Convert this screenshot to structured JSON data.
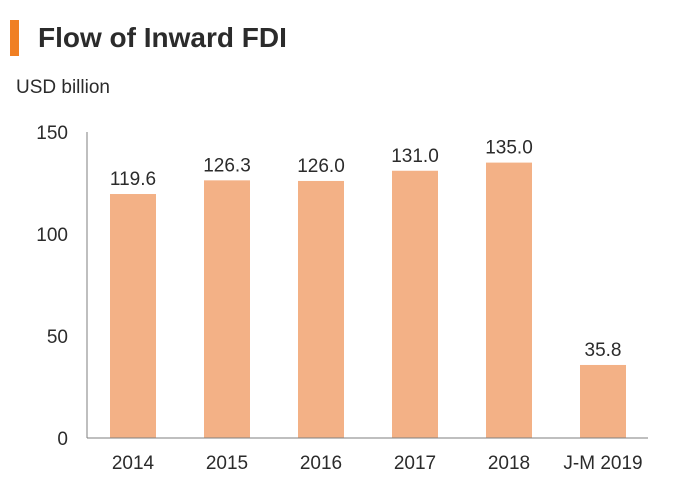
{
  "chart_data": {
    "type": "bar",
    "title": "Flow of Inward FDI",
    "ylabel": "USD billion",
    "xlabel": "",
    "categories": [
      "2014",
      "2015",
      "2016",
      "2017",
      "2018",
      "J-M 2019"
    ],
    "values": [
      119.6,
      126.3,
      126.0,
      131.0,
      135.0,
      35.8
    ],
    "data_labels": [
      "119.6",
      "126.3",
      "126.0",
      "131.0",
      "135.0",
      "35.8"
    ],
    "ylim": [
      0,
      150
    ],
    "yticks": [
      0,
      50,
      100,
      150
    ],
    "grid": false,
    "legend": "none",
    "colors": {
      "bar": "#f3b186",
      "accent": "#f07f23",
      "axis": "#7f7f7f"
    }
  }
}
